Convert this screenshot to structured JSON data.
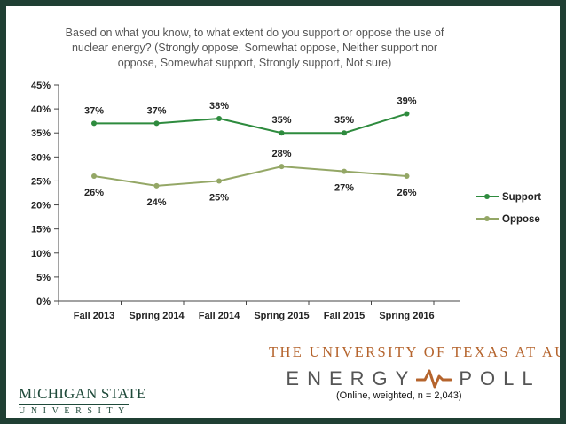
{
  "colors": {
    "support": "#2e8b3e",
    "oppose": "#94a766",
    "frame": "#1f3f33",
    "ut_orange": "#b5642d",
    "msu_green": "#1f4a3a"
  },
  "chart_data": {
    "type": "line",
    "title": "Based on what you know, to what extent do you support or oppose the use of nuclear energy? (Strongly oppose, Somewhat oppose, Neither support nor oppose, Somewhat support, Strongly support, Not sure)",
    "categories": [
      "Fall 2013",
      "Spring 2014",
      "Fall 2014",
      "Spring 2015",
      "Fall 2015",
      "Spring 2016"
    ],
    "y_ticks": [
      "0%",
      "5%",
      "10%",
      "15%",
      "20%",
      "25%",
      "30%",
      "35%",
      "40%",
      "45%"
    ],
    "ylim": [
      0,
      45
    ],
    "grid": false,
    "legend_position": "right",
    "series": [
      {
        "name": "Support",
        "values": [
          37,
          37,
          38,
          35,
          35,
          39
        ],
        "labels": [
          "37%",
          "37%",
          "38%",
          "35%",
          "35%",
          "39%"
        ]
      },
      {
        "name": "Oppose",
        "values": [
          26,
          24,
          25,
          28,
          27,
          26
        ],
        "labels": [
          "26%",
          "24%",
          "25%",
          "28%",
          "27%",
          "26%"
        ]
      }
    ]
  },
  "branding": {
    "ut_name": "THE UNIVERSITY OF TEXAS AT AUSTIN",
    "poll_word1": "ENERGY",
    "poll_word2": "POLL",
    "footnote": "(Online, weighted, n = 2,043)",
    "msu_name": "MICHIGAN STATE",
    "msu_sub": "UNIVERSITY"
  }
}
